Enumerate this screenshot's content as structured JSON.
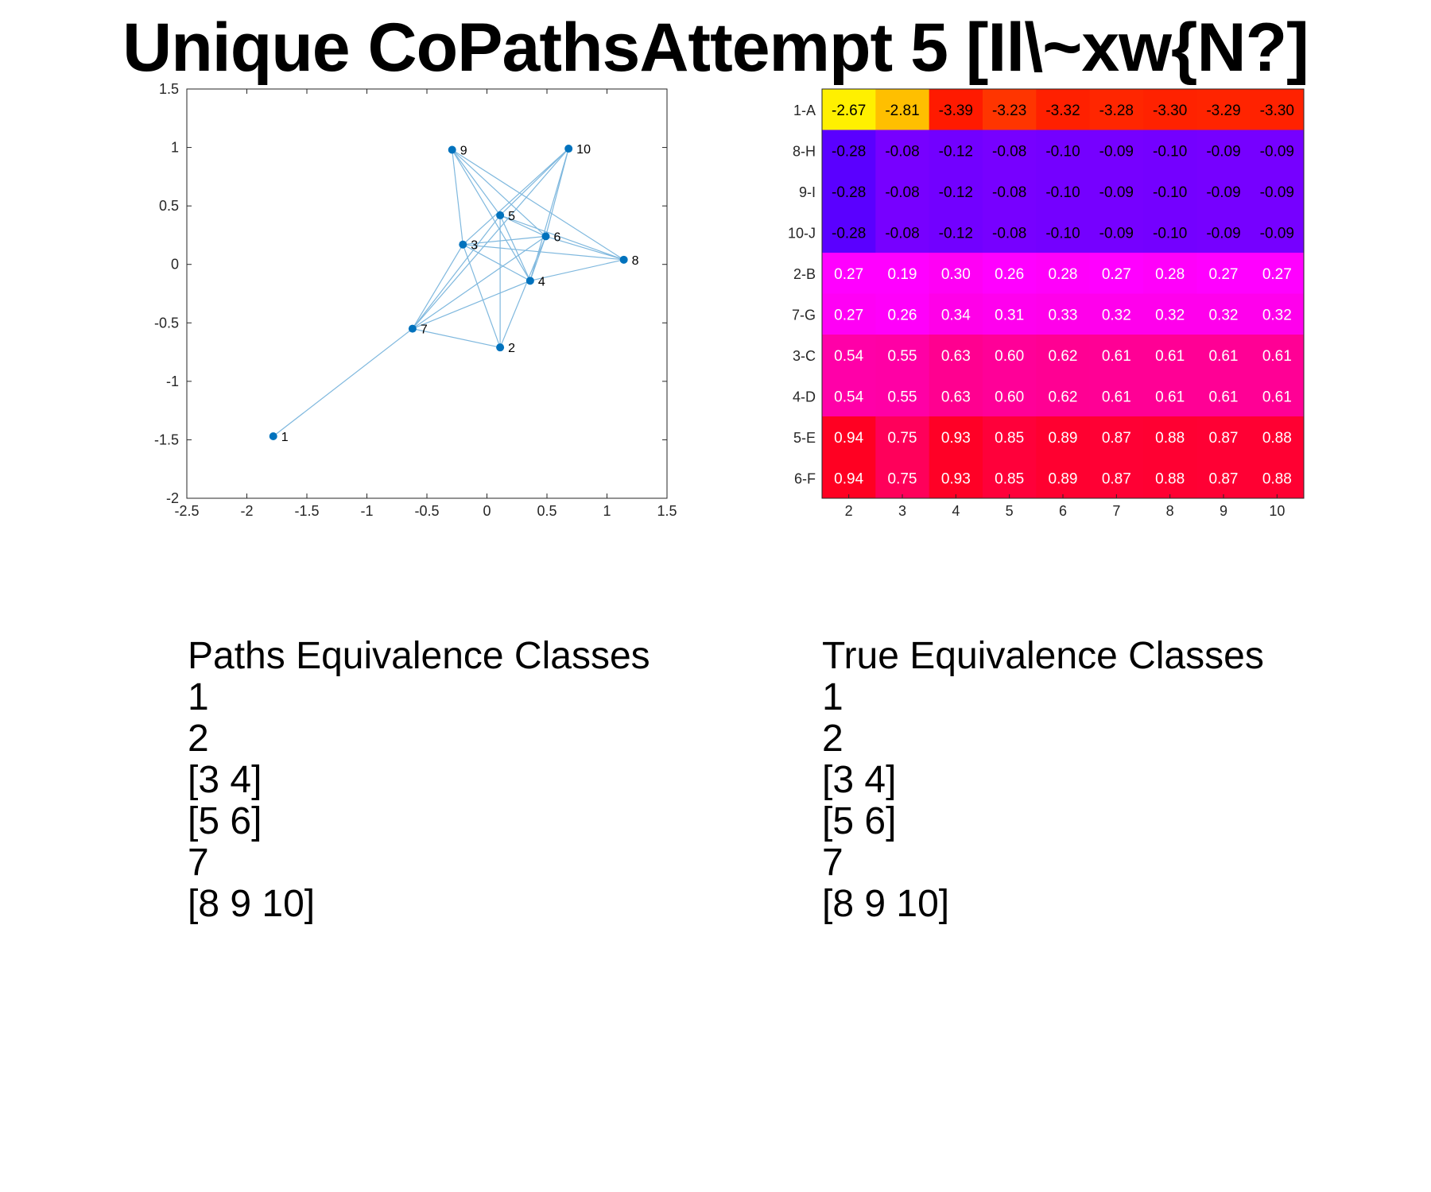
{
  "title": "Unique CoPathsAttempt 5 [Il\\~xw{N?]",
  "chart_data": [
    {
      "type": "scatter",
      "subtype": "network-graph",
      "xlim": [
        -2.5,
        1.5
      ],
      "ylim": [
        -2,
        1.5
      ],
      "xticks": [
        "-2.5",
        "-2",
        "-1.5",
        "-1",
        "-0.5",
        "0",
        "0.5",
        "1",
        "1.5"
      ],
      "yticks": [
        "1.5",
        "1",
        "0.5",
        "0",
        "-0.5",
        "-1",
        "-1.5",
        "-2"
      ],
      "node_color": "#0072BD",
      "edge_color": "#7FB8DE",
      "nodes": [
        {
          "label": "1",
          "x": -1.78,
          "y": -1.47
        },
        {
          "label": "2",
          "x": 0.11,
          "y": -0.71
        },
        {
          "label": "3",
          "x": -0.2,
          "y": 0.17
        },
        {
          "label": "4",
          "x": 0.36,
          "y": -0.14
        },
        {
          "label": "5",
          "x": 0.11,
          "y": 0.42
        },
        {
          "label": "6",
          "x": 0.49,
          "y": 0.24
        },
        {
          "label": "7",
          "x": -0.62,
          "y": -0.55
        },
        {
          "label": "8",
          "x": 1.14,
          "y": 0.04
        },
        {
          "label": "9",
          "x": -0.29,
          "y": 0.98
        },
        {
          "label": "10",
          "x": 0.68,
          "y": 0.99
        }
      ],
      "edges": [
        [
          "1",
          "7"
        ],
        [
          "7",
          "3"
        ],
        [
          "7",
          "5"
        ],
        [
          "7",
          "6"
        ],
        [
          "7",
          "4"
        ],
        [
          "7",
          "2"
        ],
        [
          "7",
          "10"
        ],
        [
          "2",
          "5"
        ],
        [
          "2",
          "6"
        ],
        [
          "2",
          "3"
        ],
        [
          "3",
          "6"
        ],
        [
          "3",
          "4"
        ],
        [
          "3",
          "9"
        ],
        [
          "3",
          "10"
        ],
        [
          "3",
          "8"
        ],
        [
          "4",
          "5"
        ],
        [
          "4",
          "9"
        ],
        [
          "4",
          "8"
        ],
        [
          "4",
          "6"
        ],
        [
          "5",
          "9"
        ],
        [
          "5",
          "10"
        ],
        [
          "5",
          "6"
        ],
        [
          "5",
          "8"
        ],
        [
          "6",
          "9"
        ],
        [
          "6",
          "10"
        ],
        [
          "6",
          "8"
        ],
        [
          "9",
          "8"
        ],
        [
          "10",
          "4"
        ]
      ]
    },
    {
      "type": "heatmap",
      "rows": [
        "1-A",
        "8-H",
        "9-I",
        "10-J",
        "2-B",
        "7-G",
        "3-C",
        "4-D",
        "5-E",
        "6-F"
      ],
      "columns": [
        "2",
        "3",
        "4",
        "5",
        "6",
        "7",
        "8",
        "9",
        "10"
      ],
      "values": [
        [
          "-2.67",
          "-2.81",
          "-3.39",
          "-3.23",
          "-3.32",
          "-3.28",
          "-3.30",
          "-3.29",
          "-3.30"
        ],
        [
          "-0.28",
          "-0.08",
          "-0.12",
          "-0.08",
          "-0.10",
          "-0.09",
          "-0.10",
          "-0.09",
          "-0.09"
        ],
        [
          "-0.28",
          "-0.08",
          "-0.12",
          "-0.08",
          "-0.10",
          "-0.09",
          "-0.10",
          "-0.09",
          "-0.09"
        ],
        [
          "-0.28",
          "-0.08",
          "-0.12",
          "-0.08",
          "-0.10",
          "-0.09",
          "-0.10",
          "-0.09",
          "-0.09"
        ],
        [
          "0.27",
          "0.19",
          "0.30",
          "0.26",
          "0.28",
          "0.27",
          "0.28",
          "0.27",
          "0.27"
        ],
        [
          "0.27",
          "0.26",
          "0.34",
          "0.31",
          "0.33",
          "0.32",
          "0.32",
          "0.32",
          "0.32"
        ],
        [
          "0.54",
          "0.55",
          "0.63",
          "0.60",
          "0.62",
          "0.61",
          "0.61",
          "0.61",
          "0.61"
        ],
        [
          "0.54",
          "0.55",
          "0.63",
          "0.60",
          "0.62",
          "0.61",
          "0.61",
          "0.61",
          "0.61"
        ],
        [
          "0.94",
          "0.75",
          "0.93",
          "0.85",
          "0.89",
          "0.87",
          "0.88",
          "0.87",
          "0.88"
        ],
        [
          "0.94",
          "0.75",
          "0.93",
          "0.85",
          "0.89",
          "0.87",
          "0.88",
          "0.87",
          "0.88"
        ]
      ],
      "cell_colors": [
        [
          "#FFF000",
          "#FFBF00",
          "#FF1A00",
          "#FF3500",
          "#FF2000",
          "#FF2600",
          "#FF2200",
          "#FF2400",
          "#FF2200"
        ],
        [
          "#5A00FF",
          "#7700FF",
          "#7200FF",
          "#7700FF",
          "#7400FF",
          "#7600FF",
          "#7400FF",
          "#7600FF",
          "#7600FF"
        ],
        [
          "#5A00FF",
          "#7700FF",
          "#7200FF",
          "#7700FF",
          "#7400FF",
          "#7600FF",
          "#7400FF",
          "#7600FF",
          "#7600FF"
        ],
        [
          "#5A00FF",
          "#7700FF",
          "#7200FF",
          "#7700FF",
          "#7400FF",
          "#7600FF",
          "#7400FF",
          "#7600FF",
          "#7600FF"
        ],
        [
          "#FF00FF",
          "#FF00FF",
          "#FF00F5",
          "#FF00FF",
          "#FF00FA",
          "#FF00FF",
          "#FF00FA",
          "#FF00FF",
          "#FF00FF"
        ],
        [
          "#FF00F5",
          "#FF00FA",
          "#FF00E8",
          "#FF00EE",
          "#FF00EA",
          "#FF00EC",
          "#FF00EC",
          "#FF00EC",
          "#FF00EC"
        ],
        [
          "#FF00A8",
          "#FF00A5",
          "#FF0090",
          "#FF0098",
          "#FF0093",
          "#FF0095",
          "#FF0095",
          "#FF0095",
          "#FF0095"
        ],
        [
          "#FF00A8",
          "#FF00A5",
          "#FF0090",
          "#FF0098",
          "#FF0093",
          "#FF0095",
          "#FF0095",
          "#FF0095",
          "#FF0095"
        ],
        [
          "#FF0022",
          "#FF005A",
          "#FF0026",
          "#FF003A",
          "#FF0030",
          "#FF0034",
          "#FF0032",
          "#FF0034",
          "#FF0032"
        ],
        [
          "#FF0022",
          "#FF005A",
          "#FF0026",
          "#FF003A",
          "#FF0030",
          "#FF0034",
          "#FF0032",
          "#FF0034",
          "#FF0032"
        ]
      ],
      "dark_text_rows": [
        "1-A",
        "8-H",
        "9-I",
        "10-J"
      ]
    }
  ],
  "paths_classes": {
    "heading": "Paths Equivalence Classes",
    "items": [
      "1",
      "2",
      "[3 4]",
      "[5 6]",
      "7",
      "[8 9 10]"
    ]
  },
  "true_classes": {
    "heading": "True Equivalence Classes",
    "items": [
      "1",
      "2",
      "[3 4]",
      "[5 6]",
      "7",
      "[8 9 10]"
    ]
  }
}
